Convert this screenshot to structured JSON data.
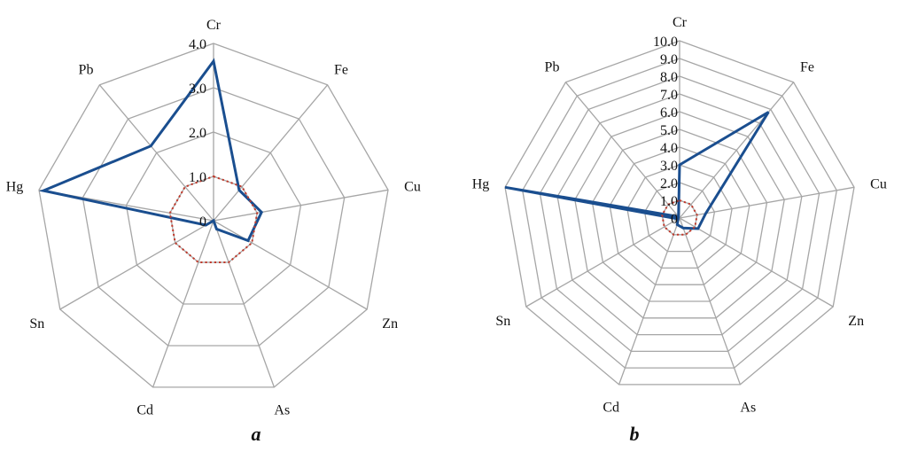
{
  "chart_data": [
    {
      "type": "radar",
      "panel_label": "a",
      "categories": [
        "Cr",
        "Fe",
        "Cu",
        "Zn",
        "As",
        "Cd",
        "Sn",
        "Hg",
        "Pb"
      ],
      "rlim": [
        0,
        4.0
      ],
      "ticks": [
        "0",
        "1.0",
        "2.0",
        "3.0",
        "4.0"
      ],
      "grid": true,
      "series": [
        {
          "values": [
            3.6,
            0.9,
            1.1,
            0.9,
            0.2,
            0.0,
            0.2,
            3.9,
            2.2
          ],
          "color": "#1a4e8f",
          "style": "solid"
        },
        {
          "values": [
            1.0,
            1.0,
            1.0,
            1.0,
            1.0,
            1.0,
            1.0,
            1.0,
            1.0
          ],
          "color": "#c0392b",
          "style": "dotted"
        }
      ]
    },
    {
      "type": "radar",
      "panel_label": "b",
      "categories": [
        "Cr",
        "Fe",
        "Cu",
        "Zn",
        "As",
        "Cd",
        "Sn",
        "Hg",
        "Pb"
      ],
      "rlim": [
        0,
        10.0
      ],
      "ticks": [
        "0",
        "1.0",
        "2.0",
        "3.0",
        "4.0",
        "5.0",
        "6.0",
        "7.0",
        "8.0",
        "9.0",
        "10.0"
      ],
      "grid": true,
      "series": [
        {
          "values": [
            3.0,
            7.8,
            1.5,
            1.2,
            0.6,
            0.4,
            0.1,
            10.0,
            0.1
          ],
          "color": "#1a4e8f",
          "style": "solid"
        },
        {
          "values": [
            1.0,
            1.0,
            1.0,
            1.0,
            1.0,
            1.0,
            1.0,
            1.0,
            1.0
          ],
          "color": "#c0392b",
          "style": "dotted"
        }
      ]
    }
  ]
}
